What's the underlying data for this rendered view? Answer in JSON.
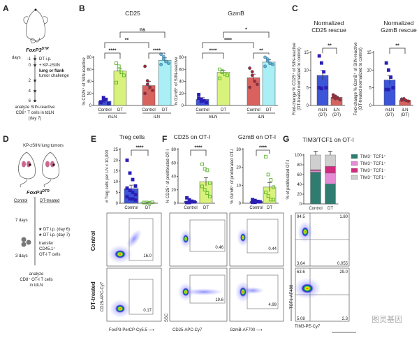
{
  "panels": {
    "A": "A",
    "B": "B",
    "C": "C",
    "D": "D",
    "E": "E",
    "F": "F",
    "G": "G"
  },
  "panel_a": {
    "genotype": "FoxP3",
    "genotype_sup": "DTR",
    "days_label": "days",
    "timeline": [
      {
        "day": "-1",
        "text": "DT i.p."
      },
      {
        "day": "0",
        "text": "+ KP-zSIIN"
      },
      {
        "day": "",
        "text": "lung or flank"
      },
      {
        "day": "",
        "text": "tumor challenge"
      },
      {
        "day": "2",
        "text": ""
      },
      {
        "day": "4",
        "text": ""
      },
      {
        "day": "6",
        "text": ""
      }
    ],
    "analyze": [
      "analyze SIIN-reactive",
      "CD8⁺ T cells in tdLN",
      "(day 7)"
    ]
  },
  "panel_d": {
    "title": "KP-zSIIN lung tumors",
    "genotype": "FoxP3",
    "genotype_sup": "DTR",
    "control": "Control",
    "treated": "DT-treated",
    "seven_days": "7 days",
    "dt1": "DT i.p. (day 6)",
    "dt2": "DT i.p. (day 7)",
    "transfer": [
      "transfer",
      "CD45.1⁺",
      "OT-I T cells"
    ],
    "three_days": "3 days",
    "analyze": [
      "analyze",
      "CD8⁺ OT-I T cells",
      "in tdLN"
    ]
  },
  "colors": {
    "ctrl_mln": "#3d55d8",
    "ctrl_mln_pt": "#2a1fb5",
    "dt_mln": "#d9f27c",
    "dt_mln_pt": "#5bb52c",
    "ctrl_iln": "#d9625e",
    "ctrl_iln_pt": "#a8262c",
    "dt_iln": "#aaeef6",
    "dt_iln_pt": "#4a9cc6",
    "tim3neg_tcf1pos": "#2f7d70",
    "tim3pos_tcf1pos": "#e58bd6",
    "tim3pos_tcf1neg": "#d12b7e",
    "tim3neg_tcf1neg": "#cfcfcf"
  },
  "chart_data": [
    {
      "id": "B1",
      "type": "bar",
      "title": "CD25",
      "ylabel": "% CD25⁺ of SIIN-reactive",
      "ylim": [
        0,
        80
      ],
      "ticks": [
        0,
        20,
        40,
        60,
        80
      ],
      "categories": [
        "Control",
        "DT",
        "Control",
        "DT"
      ],
      "groups": [
        {
          "label": "mLN",
          "span": [
            0,
            1
          ]
        },
        {
          "label": "iLN",
          "span": [
            2,
            3
          ]
        }
      ],
      "values": [
        7,
        57,
        33,
        75
      ],
      "errors": [
        3,
        5,
        7,
        4
      ],
      "points": [
        [
          5,
          8,
          10,
          3,
          6,
          13
        ],
        [
          70,
          65,
          55,
          50,
          38,
          60
        ],
        [
          65,
          41,
          30,
          25,
          20,
          35
        ],
        [
          85,
          81,
          73,
          70,
          68,
          77
        ]
      ],
      "comparisons": [
        {
          "a": 0,
          "b": 1,
          "label": "****",
          "level": 0
        },
        {
          "a": 2,
          "b": 3,
          "label": "****",
          "level": 0
        },
        {
          "a": 0,
          "b": 2,
          "label": "**",
          "level": 1
        },
        {
          "a": 1,
          "b": 3,
          "label": "ns",
          "level": 2
        }
      ]
    },
    {
      "id": "B2",
      "type": "bar",
      "title": "GzmB",
      "ylabel": "% GzmB⁺ of SIIN-reactive",
      "ylim": [
        0,
        80
      ],
      "ticks": [
        0,
        20,
        40,
        60,
        80
      ],
      "categories": [
        "Control",
        "DT",
        "Control",
        "DT"
      ],
      "groups": [
        {
          "label": "mLN",
          "span": [
            0,
            1
          ]
        },
        {
          "label": "iLN",
          "span": [
            2,
            3
          ]
        }
      ],
      "values": [
        10,
        55,
        46,
        72
      ],
      "errors": [
        3,
        3,
        6,
        4
      ],
      "points": [
        [
          18,
          10,
          8,
          5,
          12,
          7
        ],
        [
          60,
          57,
          52,
          50,
          45,
          55
        ],
        [
          62,
          56,
          40,
          35,
          30,
          50
        ],
        [
          80,
          77,
          70,
          68,
          65,
          74
        ]
      ],
      "comparisons": [
        {
          "a": 0,
          "b": 1,
          "label": "****",
          "level": 0
        },
        {
          "a": 2,
          "b": 3,
          "label": "**",
          "level": 0
        },
        {
          "a": 0,
          "b": 2,
          "label": "****",
          "level": 1
        },
        {
          "a": 1,
          "b": 3,
          "label": "*",
          "level": 2
        }
      ]
    },
    {
      "id": "C1",
      "type": "bar",
      "title": [
        "Normalized",
        "CD25 rescue"
      ],
      "ylabel": [
        "Fold-change % CD25⁺ of SIIN-reactive",
        "(DT-treated normalized to control)"
      ],
      "ylim": [
        0,
        15
      ],
      "ticks": [
        0,
        5,
        10,
        15
      ],
      "categories": [
        "mLN\n(DT)",
        "iLN\n(DT)"
      ],
      "values": [
        8.5,
        2.3
      ],
      "errors": [
        1.4,
        0.3
      ],
      "points": [
        [
          14,
          12,
          9.5,
          5,
          5,
          4.8
        ],
        [
          3,
          2.6,
          2.1,
          1.6,
          2.3,
          1.9
        ]
      ],
      "comparisons": [
        {
          "a": 0,
          "b": 1,
          "label": "**",
          "level": 0
        }
      ]
    },
    {
      "id": "C2",
      "type": "bar",
      "title": [
        "Normalized",
        "GzmB rescue"
      ],
      "ylabel": [
        "Fold-change % GzmB⁺ of SIIN-reactive",
        "(DT-treated normalized to control)"
      ],
      "ylim": [
        0,
        15
      ],
      "ticks": [
        0,
        5,
        10,
        15
      ],
      "categories": [
        "mLN\n(DT)",
        "iLN\n(DT)"
      ],
      "values": [
        7.2,
        1.5
      ],
      "errors": [
        1.2,
        0.2
      ],
      "points": [
        [
          12,
          10,
          8,
          5,
          4.5,
          4.5
        ],
        [
          1.8,
          1.6,
          1.4,
          1.2,
          1.5,
          1.9
        ]
      ],
      "comparisons": [
        {
          "a": 0,
          "b": 1,
          "label": "**",
          "level": 0
        }
      ]
    },
    {
      "id": "E",
      "type": "bar",
      "title": "Treg cells",
      "ylabel": "# Treg cells per LN x 10,000",
      "ylim": [
        0,
        25
      ],
      "ticks": [
        0,
        5,
        10,
        15,
        20,
        25
      ],
      "categories": [
        "Control",
        "DT"
      ],
      "values": [
        6.8,
        0.3
      ],
      "errors": [
        1.6,
        0.1
      ],
      "points": [
        [
          20,
          14,
          11,
          8,
          7,
          6,
          5,
          4,
          3,
          2,
          2,
          1.5
        ],
        [
          0.3,
          0.3,
          0.2,
          0.4,
          0.3,
          0.3
        ]
      ],
      "comparisons": [
        {
          "a": 0,
          "b": 1,
          "label": "****",
          "level": 0
        }
      ]
    },
    {
      "id": "F1",
      "type": "bar",
      "title": "CD25 on OT-I",
      "ylabel": "% CD25⁺ of proliferated OT-I",
      "ylim": [
        0,
        80
      ],
      "ticks": [
        0,
        20,
        40,
        60,
        80
      ],
      "categories": [
        "Control",
        "DT"
      ],
      "values": [
        3,
        32
      ],
      "errors": [
        1,
        6
      ],
      "points": [
        [
          8,
          5,
          3,
          2,
          1,
          1,
          2
        ],
        [
          58,
          51,
          49,
          30,
          25,
          20,
          15,
          10
        ]
      ],
      "comparisons": [
        {
          "a": 0,
          "b": 1,
          "label": "****",
          "level": 0
        }
      ]
    },
    {
      "id": "F2",
      "type": "bar",
      "title": "GzmB on OT-I",
      "ylabel": "% GzmB⁺ of proliferated OT-I",
      "ylim": [
        0,
        30
      ],
      "ticks": [
        0,
        10,
        20,
        30
      ],
      "categories": [
        "Control",
        "DT"
      ],
      "values": [
        1,
        9
      ],
      "errors": [
        0.3,
        2.5
      ],
      "points": [
        [
          2,
          1.5,
          1,
          0.8,
          0.5,
          0.5,
          1
        ],
        [
          26,
          16,
          13,
          9,
          6,
          4,
          2,
          2
        ]
      ],
      "comparisons": [
        {
          "a": 0,
          "b": 1,
          "label": "****",
          "level": 0
        }
      ]
    },
    {
      "id": "G",
      "type": "stacked-bar",
      "title": "TIM3/TCF1 on OT-I",
      "ylabel": "% of proliferated OT-I",
      "ylim": [
        0,
        100
      ],
      "ticks": [
        0,
        20,
        40,
        60,
        80,
        100
      ],
      "categories": [
        "Control",
        "DT"
      ],
      "series": [
        {
          "name": "TIM3⁻ TCF1⁺",
          "values": [
            65,
            41
          ]
        },
        {
          "name": "TIM3⁺ TCF1⁺",
          "values": [
            3,
            22
          ]
        },
        {
          "name": "TIM3⁺ TCF1⁻",
          "values": [
            2,
            14
          ]
        },
        {
          "name": "TIM3⁻ TCF1⁻",
          "values": [
            30,
            23
          ]
        }
      ],
      "legend": "right"
    }
  ],
  "flow": {
    "row_labels": [
      "Control",
      "DT-treated"
    ],
    "E": {
      "x": "FoxP3-PerCP-Cy5.5",
      "y": "CD25-APC-Cy7",
      "gates": [
        "16.0",
        "0.17"
      ]
    },
    "F1": {
      "x": "CD25-APC-Cy7",
      "y": "SSC",
      "gates": [
        "0.46",
        "19.6"
      ]
    },
    "F2": {
      "x": "GzmB-AF700",
      "gates": [
        "0.44",
        "4.99"
      ]
    },
    "G": {
      "x": "TIM3-PE-Cy7",
      "y": "TCF1-AF488",
      "control": [
        "94.5",
        "1.80",
        "3.64",
        "0.055"
      ],
      "dt": [
        "63.6",
        "29.0",
        "5.08",
        "2.3"
      ]
    }
  },
  "watermark": "图灵基因"
}
